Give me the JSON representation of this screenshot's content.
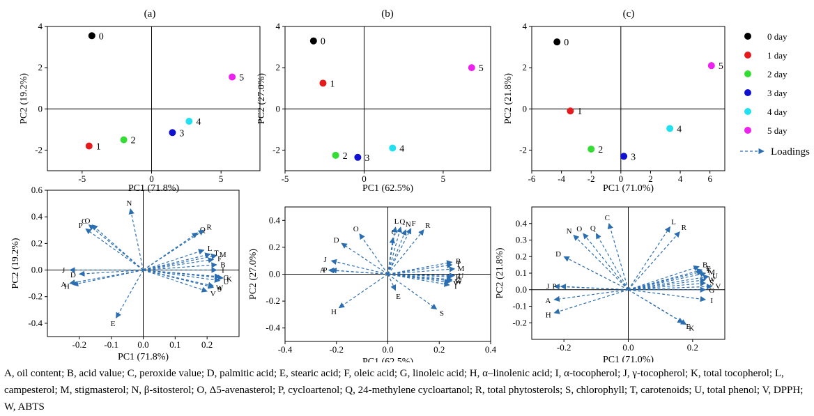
{
  "colors": {
    "day0": "#000000",
    "day1": "#e41a1c",
    "day2": "#33dd33",
    "day3": "#1010d0",
    "day4": "#22e0f0",
    "day5": "#ee22ee",
    "loading": "#2a6db0"
  },
  "legend": {
    "items": [
      {
        "label": "0 day",
        "color": "#000000"
      },
      {
        "label": "1 day",
        "color": "#e41a1c"
      },
      {
        "label": "2 day",
        "color": "#33dd33"
      },
      {
        "label": "3 day",
        "color": "#1010d0"
      },
      {
        "label": "4 day",
        "color": "#22e0f0"
      },
      {
        "label": "5 day",
        "color": "#ee22ee"
      }
    ],
    "loadings_label": "Loadings",
    "placement": "right"
  },
  "chart_data": [
    {
      "type": "scatter",
      "panel": "(a)",
      "xlabel": "PC1 (71.8%)",
      "ylabel": "PC2 (19.2%)",
      "xlim": [
        -7.5,
        7.8
      ],
      "ylim": [
        -3,
        4
      ],
      "xticks": [
        -5,
        0,
        5
      ],
      "yticks": [
        -2,
        0,
        2,
        4
      ],
      "points": [
        {
          "label": "0",
          "x": -4.3,
          "y": 3.55,
          "color": "#000000"
        },
        {
          "label": "1",
          "x": -4.5,
          "y": -1.8,
          "color": "#e41a1c"
        },
        {
          "label": "2",
          "x": -2.0,
          "y": -1.5,
          "color": "#33dd33"
        },
        {
          "label": "3",
          "x": 1.5,
          "y": -1.15,
          "color": "#1010d0"
        },
        {
          "label": "4",
          "x": 2.7,
          "y": -0.6,
          "color": "#22e0f0"
        },
        {
          "label": "5",
          "x": 5.8,
          "y": 1.55,
          "color": "#ee22ee"
        }
      ]
    },
    {
      "type": "scatter",
      "panel": "(b)",
      "xlabel": "PC1 (62.5%)",
      "ylabel": "PC2 (27.0%)",
      "xlim": [
        -5,
        8
      ],
      "ylim": [
        -3,
        4
      ],
      "xticks": [
        -5,
        0,
        5
      ],
      "yticks": [
        -2,
        0,
        2,
        4
      ],
      "points": [
        {
          "label": "0",
          "x": -3.2,
          "y": 3.3,
          "color": "#000000"
        },
        {
          "label": "1",
          "x": -2.6,
          "y": 1.25,
          "color": "#e41a1c"
        },
        {
          "label": "2",
          "x": -1.8,
          "y": -2.25,
          "color": "#33dd33"
        },
        {
          "label": "3",
          "x": -0.4,
          "y": -2.35,
          "color": "#1010d0"
        },
        {
          "label": "4",
          "x": 1.8,
          "y": -1.9,
          "color": "#22e0f0"
        },
        {
          "label": "5",
          "x": 6.8,
          "y": 2.0,
          "color": "#ee22ee"
        }
      ]
    },
    {
      "type": "scatter",
      "panel": "(c)",
      "xlabel": "PC1 (71.0%)",
      "ylabel": "PC2 (21.8%)",
      "xlim": [
        -6,
        7
      ],
      "ylim": [
        -3,
        4
      ],
      "xticks": [
        -6,
        -4,
        -2,
        0,
        2,
        4,
        6
      ],
      "yticks": [
        -2,
        0,
        2,
        4
      ],
      "points": [
        {
          "label": "0",
          "x": -4.3,
          "y": 3.25,
          "color": "#000000"
        },
        {
          "label": "1",
          "x": -3.4,
          "y": -0.1,
          "color": "#e41a1c"
        },
        {
          "label": "2",
          "x": -2.0,
          "y": -1.95,
          "color": "#33dd33"
        },
        {
          "label": "3",
          "x": 0.2,
          "y": -2.3,
          "color": "#1010d0"
        },
        {
          "label": "4",
          "x": 3.3,
          "y": -0.95,
          "color": "#22e0f0"
        },
        {
          "label": "5",
          "x": 6.1,
          "y": 2.1,
          "color": "#ee22ee"
        }
      ]
    },
    {
      "type": "scatter",
      "panel": "loadings-a",
      "xlabel": "PC1 (71.8%)",
      "ylabel": "PC2 (19.2%)",
      "xlim": [
        -0.3,
        0.3
      ],
      "ylim": [
        -0.5,
        0.6
      ],
      "xticks": [
        -0.2,
        -0.1,
        0.0,
        0.1,
        0.2
      ],
      "yticks": [
        -0.4,
        -0.2,
        0.0,
        0.2,
        0.4,
        0.6
      ],
      "vectors": [
        {
          "label": "A",
          "x": -0.23,
          "y": -0.1
        },
        {
          "label": "B",
          "x": 0.23,
          "y": 0.04
        },
        {
          "label": "C",
          "x": -0.17,
          "y": 0.34
        },
        {
          "label": "D",
          "x": -0.2,
          "y": -0.03
        },
        {
          "label": "E",
          "x": -0.085,
          "y": -0.36
        },
        {
          "label": "F",
          "x": 0.22,
          "y": 0.08
        },
        {
          "label": "G",
          "x": 0.24,
          "y": -0.05
        },
        {
          "label": "H",
          "x": -0.22,
          "y": -0.11
        },
        {
          "label": "I",
          "x": 0.23,
          "y": 0.0
        },
        {
          "label": "J",
          "x": -0.23,
          "y": 0.0
        },
        {
          "label": "K",
          "x": 0.25,
          "y": -0.06
        },
        {
          "label": "L",
          "x": 0.19,
          "y": 0.15
        },
        {
          "label": "M",
          "x": 0.23,
          "y": 0.11
        },
        {
          "label": "N",
          "x": -0.04,
          "y": 0.46
        },
        {
          "label": "O",
          "x": -0.16,
          "y": 0.34
        },
        {
          "label": "P",
          "x": -0.18,
          "y": 0.31
        },
        {
          "label": "Q",
          "x": 0.17,
          "y": 0.28
        },
        {
          "label": "R",
          "x": 0.19,
          "y": 0.3
        },
        {
          "label": "S",
          "x": 0.22,
          "y": -0.13
        },
        {
          "label": "T",
          "x": 0.21,
          "y": 0.12
        },
        {
          "label": "U",
          "x": 0.24,
          "y": -0.08
        },
        {
          "label": "V",
          "x": 0.2,
          "y": -0.16
        },
        {
          "label": "W",
          "x": 0.22,
          "y": -0.12
        }
      ]
    },
    {
      "type": "scatter",
      "panel": "loadings-b",
      "xlabel": "PC1 (62.5%)",
      "ylabel": "PC2 (27.0%)",
      "xlim": [
        -0.4,
        0.4
      ],
      "ylim": [
        -0.5,
        0.5
      ],
      "xticks": [
        -0.4,
        -0.2,
        0.0,
        0.2,
        0.4
      ],
      "yticks": [
        -0.4,
        -0.2,
        0.0,
        0.2,
        0.4
      ],
      "vectors": [
        {
          "label": "A",
          "x": -0.23,
          "y": 0.03
        },
        {
          "label": "B",
          "x": 0.25,
          "y": 0.09
        },
        {
          "label": "C",
          "x": 0.02,
          "y": 0.27
        },
        {
          "label": "D",
          "x": -0.18,
          "y": 0.23
        },
        {
          "label": "E",
          "x": 0.03,
          "y": -0.12
        },
        {
          "label": "F",
          "x": 0.09,
          "y": 0.34
        },
        {
          "label": "G",
          "x": 0.25,
          "y": -0.04
        },
        {
          "label": "H",
          "x": -0.19,
          "y": -0.25
        },
        {
          "label": "I",
          "x": 0.24,
          "y": -0.08
        },
        {
          "label": "J",
          "x": -0.22,
          "y": 0.1
        },
        {
          "label": "K",
          "x": 0.25,
          "y": -0.02
        },
        {
          "label": "L",
          "x": 0.03,
          "y": 0.35
        },
        {
          "label": "M",
          "x": 0.26,
          "y": 0.04
        },
        {
          "label": "N",
          "x": 0.07,
          "y": 0.33
        },
        {
          "label": "O",
          "x": -0.11,
          "y": 0.3
        },
        {
          "label": "P",
          "x": -0.22,
          "y": 0.03
        },
        {
          "label": "Q",
          "x": 0.05,
          "y": 0.35
        },
        {
          "label": "R",
          "x": 0.14,
          "y": 0.33
        },
        {
          "label": "S",
          "x": 0.19,
          "y": -0.26
        },
        {
          "label": "T",
          "x": 0.25,
          "y": 0.07
        },
        {
          "label": "U",
          "x": 0.26,
          "y": -0.01
        },
        {
          "label": "V",
          "x": 0.24,
          "y": -0.06
        },
        {
          "label": "W",
          "x": 0.25,
          "y": -0.05
        }
      ]
    },
    {
      "type": "scatter",
      "panel": "loadings-c",
      "xlabel": "PC1 (71.0%)",
      "ylabel": "PC2 (21.8%)",
      "xlim": [
        -0.3,
        0.3
      ],
      "ylim": [
        -0.3,
        0.5
      ],
      "xticks": [
        -0.2,
        0.0,
        0.2
      ],
      "yticks": [
        -0.2,
        -0.1,
        0.0,
        0.1,
        0.2,
        0.3,
        0.4
      ],
      "vectors": [
        {
          "label": "A",
          "x": -0.23,
          "y": -0.06
        },
        {
          "label": "B",
          "x": 0.22,
          "y": 0.14
        },
        {
          "label": "C",
          "x": -0.06,
          "y": 0.4
        },
        {
          "label": "D",
          "x": -0.2,
          "y": 0.2
        },
        {
          "label": "E",
          "x": 0.17,
          "y": -0.2
        },
        {
          "label": "F",
          "x": 0.23,
          "y": 0.12
        },
        {
          "label": "G",
          "x": 0.24,
          "y": 0.0
        },
        {
          "label": "H",
          "x": -0.23,
          "y": -0.14
        },
        {
          "label": "I",
          "x": 0.24,
          "y": -0.06
        },
        {
          "label": "J",
          "x": -0.23,
          "y": 0.02
        },
        {
          "label": "K",
          "x": 0.18,
          "y": -0.21
        },
        {
          "label": "L",
          "x": 0.13,
          "y": 0.38
        },
        {
          "label": "M",
          "x": 0.24,
          "y": 0.1
        },
        {
          "label": "N",
          "x": -0.17,
          "y": 0.33
        },
        {
          "label": "O",
          "x": -0.14,
          "y": 0.34
        },
        {
          "label": "P",
          "x": -0.21,
          "y": 0.02
        },
        {
          "label": "Q",
          "x": -0.1,
          "y": 0.34
        },
        {
          "label": "R",
          "x": 0.16,
          "y": 0.35
        },
        {
          "label": "S",
          "x": 0.24,
          "y": 0.04
        },
        {
          "label": "T",
          "x": 0.23,
          "y": 0.11
        },
        {
          "label": "U",
          "x": 0.25,
          "y": 0.08
        },
        {
          "label": "V",
          "x": 0.26,
          "y": 0.02
        },
        {
          "label": "W",
          "x": 0.24,
          "y": 0.06
        }
      ]
    }
  ],
  "caption": "A, oil content; B, acid value; C, peroxide value; D, palmitic acid; E, stearic acid; F, oleic acid; G, linoleic acid; H, α–linolenic acid; I, α-tocopherol; J, γ-tocopherol; K, total tocopherol; L, campesterol; M, stigmasterol; N, β-sitosterol; O, Δ5-avenasterol; P, cycloartenol; Q, 24-methylene cycloartanol; R, total phytosterols; S, chlorophyll; T, carotenoids; U, total phenol; V, DPPH; W, ABTS"
}
